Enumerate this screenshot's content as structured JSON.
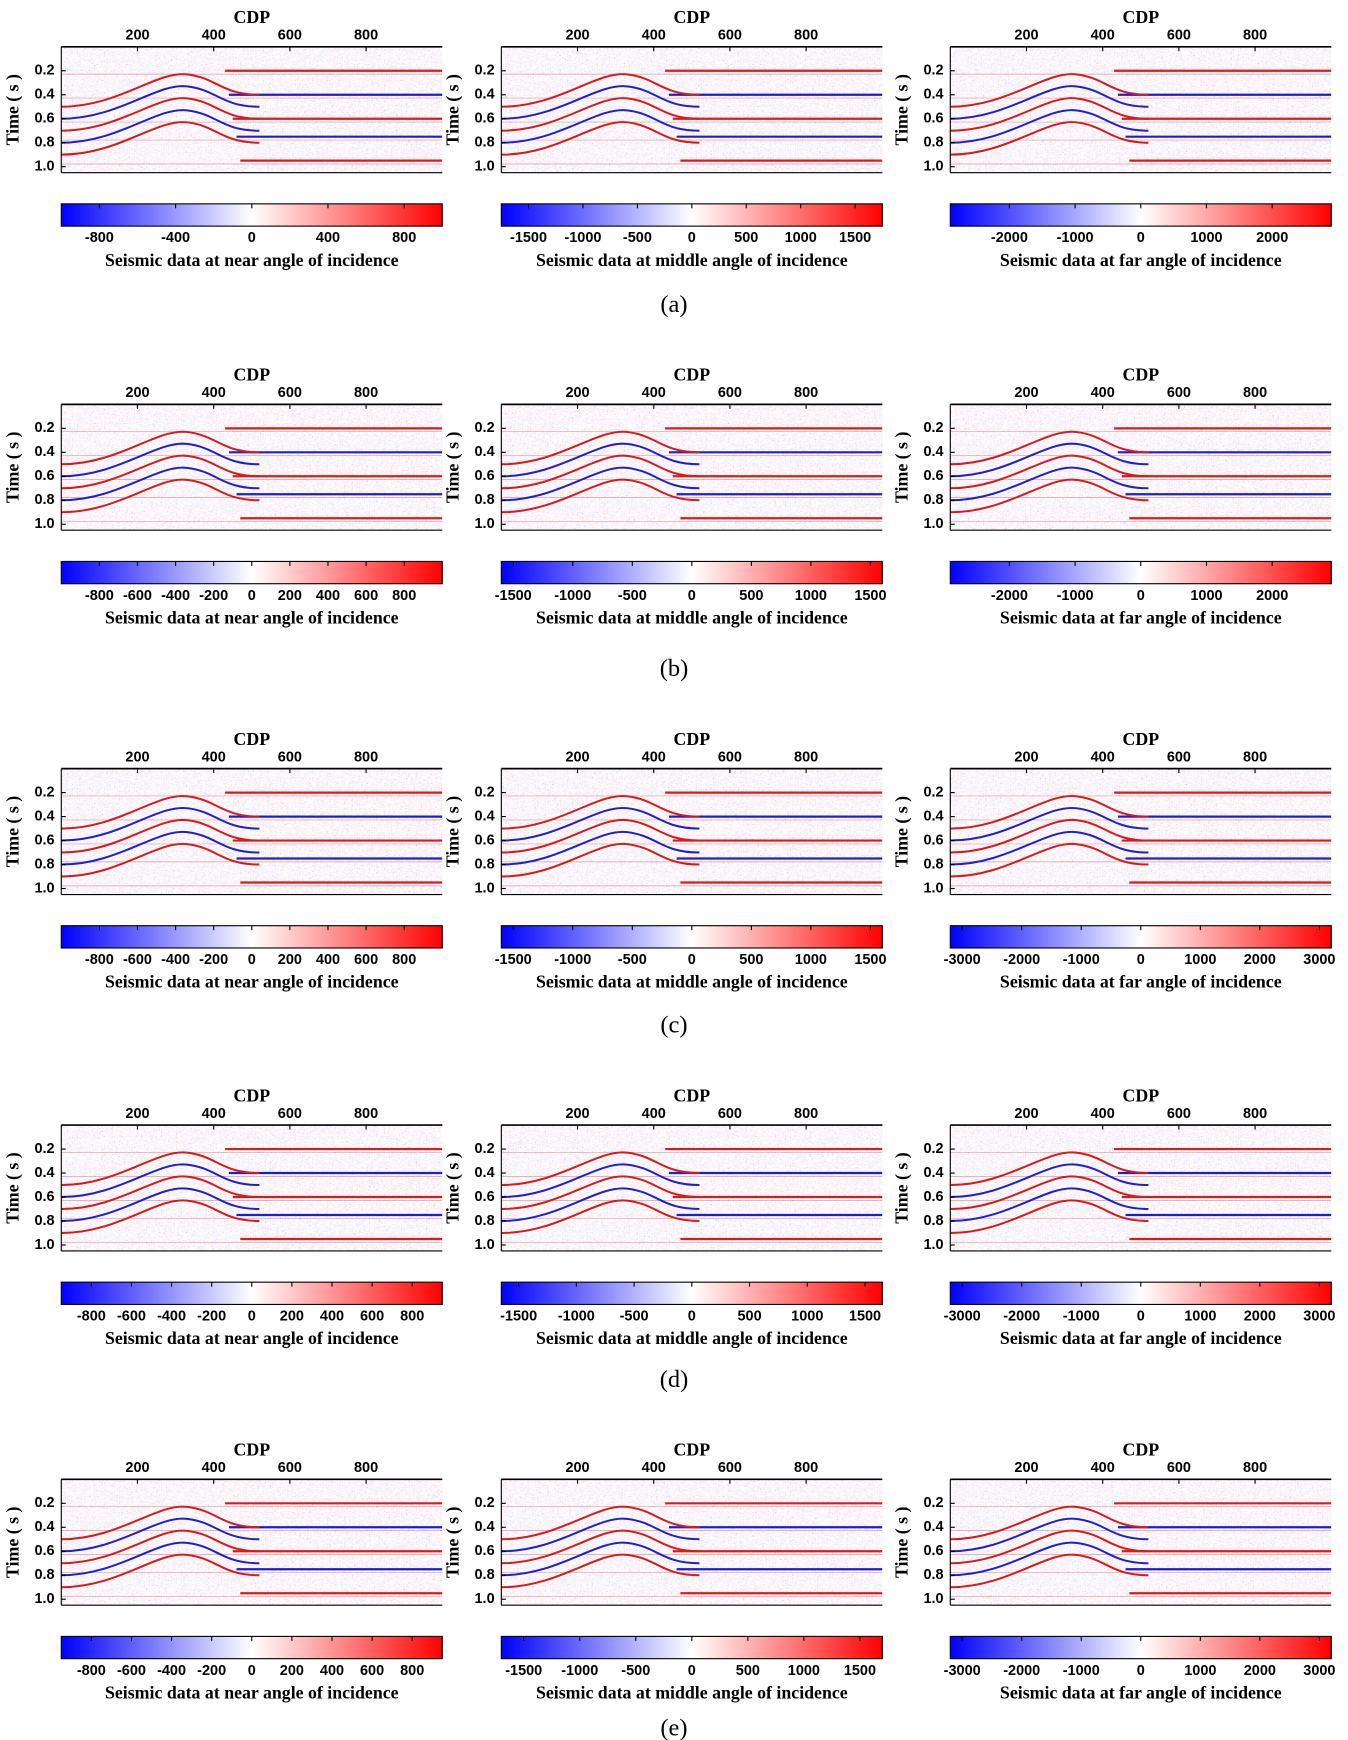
{
  "chart_data": [
    {
      "type": "heatmap",
      "title": "CDP",
      "y_label": "Time ( s )",
      "xlim": [
        0,
        1000
      ],
      "xticks": [
        200,
        400,
        600,
        800
      ],
      "ylim": [
        1.05,
        0
      ],
      "yticks": [
        0.2,
        0.4,
        0.6,
        0.8,
        {
          "value": 1,
          "label": "1.0"
        }
      ],
      "colorbar": {
        "label": "Seismic data at near angle of incidence",
        "clim": [
          -1000,
          1000
        ],
        "ticks": [
          -800,
          -400,
          0,
          400,
          800
        ],
        "colors": [
          "#0000ff",
          "#ffffff",
          "#ff0000"
        ]
      }
    },
    {
      "type": "heatmap",
      "title": "CDP",
      "y_label": "Time ( s )",
      "xlim": [
        0,
        1000
      ],
      "xticks": [
        200,
        400,
        600,
        800
      ],
      "ylim": [
        1.05,
        0
      ],
      "yticks": [
        0.2,
        0.4,
        0.6,
        0.8,
        {
          "value": 1,
          "label": "1.0"
        }
      ],
      "colorbar": {
        "label": "Seismic data at middle  angle of incidence",
        "clim": [
          -1750,
          1750
        ],
        "ticks": [
          -1500,
          -1000,
          -500,
          0,
          500,
          1000,
          1500
        ],
        "colors": [
          "#0000ff",
          "#ffffff",
          "#ff0000"
        ]
      }
    },
    {
      "type": "heatmap",
      "title": "CDP",
      "y_label": "Time ( s )",
      "xlim": [
        0,
        1000
      ],
      "xticks": [
        200,
        400,
        600,
        800
      ],
      "ylim": [
        1.05,
        0
      ],
      "yticks": [
        0.2,
        0.4,
        0.6,
        0.8,
        {
          "value": 1,
          "label": "1.0"
        }
      ],
      "colorbar": {
        "label": "Seismic data at far angle of incidence",
        "clim": [
          -2900,
          2900
        ],
        "ticks": [
          -2000,
          -1000,
          0,
          1000,
          2000
        ],
        "colors": [
          "#0000ff",
          "#ffffff",
          "#ff0000"
        ]
      }
    },
    {
      "type": "heatmap",
      "title": "CDP",
      "y_label": "Time ( s )",
      "xlim": [
        0,
        1000
      ],
      "xticks": [
        200,
        400,
        600,
        800
      ],
      "ylim": [
        1.05,
        0
      ],
      "yticks": [
        0.2,
        0.4,
        0.6,
        0.8,
        {
          "value": 1,
          "label": "1.0"
        }
      ],
      "colorbar": {
        "label": "Seismic data at near angle of incidence",
        "clim": [
          -1000,
          1000
        ],
        "ticks": [
          -800,
          -600,
          -400,
          -200,
          0,
          200,
          400,
          600,
          800
        ],
        "colors": [
          "#0000ff",
          "#ffffff",
          "#ff0000"
        ]
      }
    },
    {
      "type": "heatmap",
      "title": "CDP",
      "y_label": "Time ( s )",
      "xlim": [
        0,
        1000
      ],
      "xticks": [
        200,
        400,
        600,
        800
      ],
      "ylim": [
        1.05,
        0
      ],
      "yticks": [
        0.2,
        0.4,
        0.6,
        0.8,
        {
          "value": 1,
          "label": "1.0"
        }
      ],
      "colorbar": {
        "label": "Seismic data at middle  angle of incidence",
        "clim": [
          -1600,
          1600
        ],
        "ticks": [
          -1500,
          -1000,
          -500,
          0,
          500,
          1000,
          1500
        ],
        "colors": [
          "#0000ff",
          "#ffffff",
          "#ff0000"
        ]
      }
    },
    {
      "type": "heatmap",
      "title": "CDP",
      "y_label": "Time ( s )",
      "xlim": [
        0,
        1000
      ],
      "xticks": [
        200,
        400,
        600,
        800
      ],
      "ylim": [
        1.05,
        0
      ],
      "yticks": [
        0.2,
        0.4,
        0.6,
        0.8,
        {
          "value": 1,
          "label": "1.0"
        }
      ],
      "colorbar": {
        "label": "Seismic data at far angle of incidence",
        "clim": [
          -2900,
          2900
        ],
        "ticks": [
          -2000,
          -1000,
          0,
          1000,
          2000
        ],
        "colors": [
          "#0000ff",
          "#ffffff",
          "#ff0000"
        ]
      }
    },
    {
      "type": "heatmap",
      "title": "CDP",
      "y_label": "Time ( s )",
      "xlim": [
        0,
        1000
      ],
      "xticks": [
        200,
        400,
        600,
        800
      ],
      "ylim": [
        1.05,
        0
      ],
      "yticks": [
        0.2,
        0.4,
        0.6,
        0.8,
        {
          "value": 1,
          "label": "1.0"
        }
      ],
      "colorbar": {
        "label": "Seismic data at near angle of incidence",
        "clim": [
          -1000,
          1000
        ],
        "ticks": [
          -800,
          -600,
          -400,
          -200,
          0,
          200,
          400,
          600,
          800
        ],
        "colors": [
          "#0000ff",
          "#ffffff",
          "#ff0000"
        ]
      }
    },
    {
      "type": "heatmap",
      "title": "CDP",
      "y_label": "Time ( s )",
      "xlim": [
        0,
        1000
      ],
      "xticks": [
        200,
        400,
        600,
        800
      ],
      "ylim": [
        1.05,
        0
      ],
      "yticks": [
        0.2,
        0.4,
        0.6,
        0.8,
        {
          "value": 1,
          "label": "1.0"
        }
      ],
      "colorbar": {
        "label": "Seismic data at middle  angle of incidence",
        "clim": [
          -1600,
          1600
        ],
        "ticks": [
          -1500,
          -1000,
          -500,
          0,
          500,
          1000,
          1500
        ],
        "colors": [
          "#0000ff",
          "#ffffff",
          "#ff0000"
        ]
      }
    },
    {
      "type": "heatmap",
      "title": "CDP",
      "y_label": "Time ( s )",
      "xlim": [
        0,
        1000
      ],
      "xticks": [
        200,
        400,
        600,
        800
      ],
      "ylim": [
        1.05,
        0
      ],
      "yticks": [
        0.2,
        0.4,
        0.6,
        0.8,
        {
          "value": 1,
          "label": "1.0"
        }
      ],
      "colorbar": {
        "label": "Seismic data at far angle of incidence",
        "clim": [
          -3200,
          3200
        ],
        "ticks": [
          -3000,
          -2000,
          -1000,
          0,
          1000,
          2000,
          3000
        ],
        "colors": [
          "#0000ff",
          "#ffffff",
          "#ff0000"
        ]
      }
    },
    {
      "type": "heatmap",
      "title": "CDP",
      "y_label": "Time ( s )",
      "xlim": [
        0,
        1000
      ],
      "xticks": [
        200,
        400,
        600,
        800
      ],
      "ylim": [
        1.05,
        0
      ],
      "yticks": [
        0.2,
        0.4,
        0.6,
        0.8,
        {
          "value": 1,
          "label": "1.0"
        }
      ],
      "colorbar": {
        "label": "Seismic data at near angle of incidence",
        "clim": [
          -950,
          950
        ],
        "ticks": [
          -800,
          -600,
          -400,
          -200,
          0,
          200,
          400,
          600,
          800
        ],
        "colors": [
          "#0000ff",
          "#ffffff",
          "#ff0000"
        ]
      }
    },
    {
      "type": "heatmap",
      "title": "CDP",
      "y_label": "Time ( s )",
      "xlim": [
        0,
        1000
      ],
      "xticks": [
        200,
        400,
        600,
        800
      ],
      "ylim": [
        1.05,
        0
      ],
      "yticks": [
        0.2,
        0.4,
        0.6,
        0.8,
        {
          "value": 1,
          "label": "1.0"
        }
      ],
      "colorbar": {
        "label": "Seismic data at middle  angle of incidence",
        "clim": [
          -1650,
          1650
        ],
        "ticks": [
          -1500,
          -1000,
          -500,
          0,
          500,
          1000,
          1500
        ],
        "colors": [
          "#0000ff",
          "#ffffff",
          "#ff0000"
        ]
      }
    },
    {
      "type": "heatmap",
      "title": "CDP",
      "y_label": "Time ( s )",
      "xlim": [
        0,
        1000
      ],
      "xticks": [
        200,
        400,
        600,
        800
      ],
      "ylim": [
        1.05,
        0
      ],
      "yticks": [
        0.2,
        0.4,
        0.6,
        0.8,
        {
          "value": 1,
          "label": "1.0"
        }
      ],
      "colorbar": {
        "label": "Seismic data at far angle of incidence",
        "clim": [
          -3200,
          3200
        ],
        "ticks": [
          -3000,
          -2000,
          -1000,
          0,
          1000,
          2000,
          3000
        ],
        "colors": [
          "#0000ff",
          "#ffffff",
          "#ff0000"
        ]
      }
    },
    {
      "type": "heatmap",
      "title": "CDP",
      "y_label": "Time ( s )",
      "xlim": [
        0,
        1000
      ],
      "xticks": [
        200,
        400,
        600,
        800
      ],
      "ylim": [
        1.05,
        0
      ],
      "yticks": [
        0.2,
        0.4,
        0.6,
        0.8,
        {
          "value": 1,
          "label": "1.0"
        }
      ],
      "colorbar": {
        "label": "Seismic data at near angle of incidence",
        "clim": [
          -950,
          950
        ],
        "ticks": [
          -800,
          -600,
          -400,
          -200,
          0,
          200,
          400,
          600,
          800
        ],
        "colors": [
          "#0000ff",
          "#ffffff",
          "#ff0000"
        ]
      }
    },
    {
      "type": "heatmap",
      "title": "CDP",
      "y_label": "Time ( s )",
      "xlim": [
        0,
        1000
      ],
      "xticks": [
        200,
        400,
        600,
        800
      ],
      "ylim": [
        1.05,
        0
      ],
      "yticks": [
        0.2,
        0.4,
        0.6,
        0.8,
        {
          "value": 1,
          "label": "1.0"
        }
      ],
      "colorbar": {
        "label": "Seismic data at middle  angle of incidence",
        "clim": [
          -1700,
          1700
        ],
        "ticks": [
          -1500,
          -1000,
          -500,
          0,
          500,
          1000,
          1500
        ],
        "colors": [
          "#0000ff",
          "#ffffff",
          "#ff0000"
        ]
      }
    },
    {
      "type": "heatmap",
      "title": "CDP",
      "y_label": "Time ( s )",
      "xlim": [
        0,
        1000
      ],
      "xticks": [
        200,
        400,
        600,
        800
      ],
      "ylim": [
        1.05,
        0
      ],
      "yticks": [
        0.2,
        0.4,
        0.6,
        0.8,
        {
          "value": 1,
          "label": "1.0"
        }
      ],
      "colorbar": {
        "label": "Seismic data at far angle of incidence",
        "clim": [
          -3200,
          3200
        ],
        "ticks": [
          -3000,
          -2000,
          -1000,
          0,
          1000,
          2000,
          3000
        ],
        "colors": [
          "#0000ff",
          "#ffffff",
          "#ff0000"
        ]
      }
    }
  ],
  "captions": [
    "(a)",
    "(b)",
    "(c)",
    "(d)",
    "(e)"
  ]
}
